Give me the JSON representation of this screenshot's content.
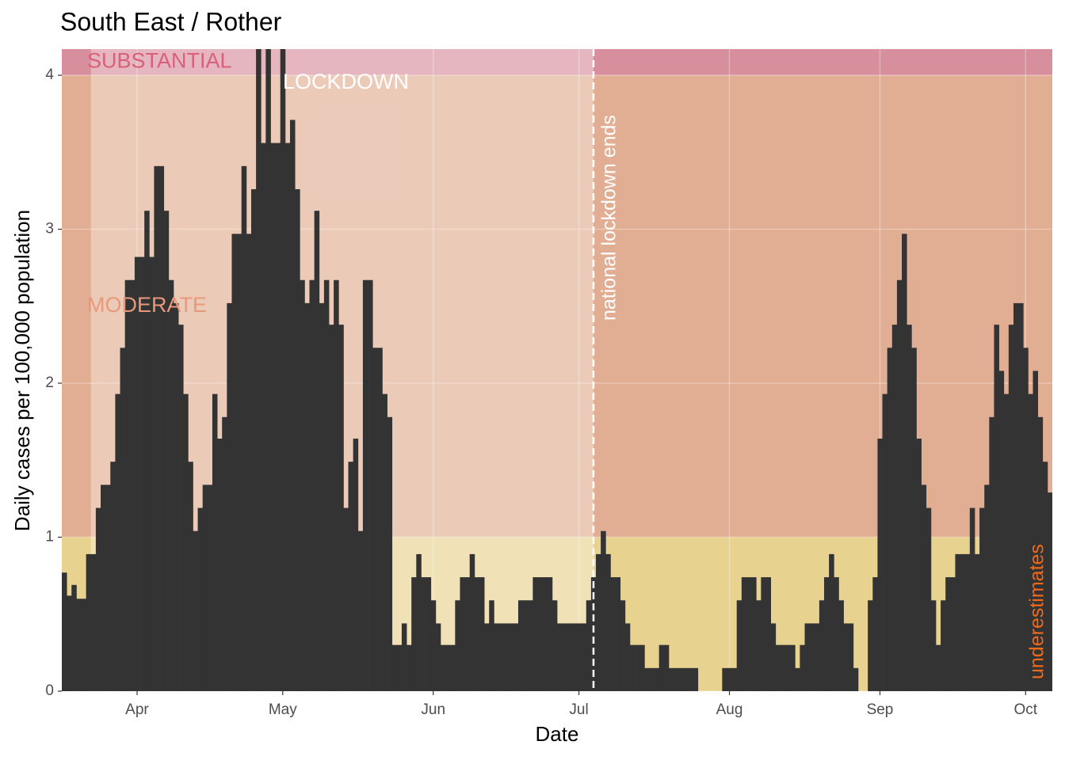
{
  "chart_data": {
    "type": "bar",
    "title": "South East / Rother",
    "x_label": "Date",
    "y_label": "Daily cases per 100,000 population",
    "categories": [
      null,
      null,
      null,
      null,
      null,
      null,
      null,
      null,
      null,
      null,
      null,
      null,
      null,
      null,
      null,
      "Apr",
      null,
      null,
      null,
      null,
      null,
      null,
      null,
      null,
      null,
      null,
      null,
      null,
      null,
      null,
      null,
      null,
      null,
      null,
      null,
      null,
      null,
      null,
      null,
      null,
      null,
      null,
      null,
      null,
      null,
      "May",
      null,
      null,
      null,
      null,
      null,
      null,
      null,
      null,
      null,
      null,
      null,
      null,
      null,
      null,
      null,
      null,
      null,
      null,
      null,
      null,
      null,
      null,
      null,
      null,
      null,
      null,
      null,
      null,
      null,
      null,
      "Jun",
      null,
      null,
      null,
      null,
      null,
      null,
      null,
      null,
      null,
      null,
      null,
      null,
      null,
      null,
      null,
      null,
      null,
      null,
      null,
      null,
      null,
      null,
      null,
      null,
      null,
      null,
      null,
      null,
      null,
      "Jul",
      null,
      null,
      null,
      null,
      null,
      null,
      null,
      null,
      null,
      null,
      null,
      null,
      null,
      null,
      null,
      null,
      null,
      null,
      null,
      null,
      null,
      null,
      null,
      null,
      null,
      null,
      null,
      null,
      null,
      null,
      "Aug",
      null,
      null,
      null,
      null,
      null,
      null,
      null,
      null,
      null,
      null,
      null,
      null,
      null,
      null,
      null,
      null,
      null,
      null,
      null,
      null,
      null,
      null,
      null,
      null,
      null,
      null,
      null,
      null,
      null,
      null,
      "Sep",
      null,
      null,
      null,
      null,
      null,
      null,
      null,
      null,
      null,
      null,
      null,
      null,
      null,
      null,
      null,
      null,
      null,
      null,
      null,
      null,
      null,
      null,
      null,
      null,
      null,
      null,
      null,
      null,
      null,
      "Oct",
      null,
      null,
      null,
      null,
      null
    ],
    "values": [
      0.77,
      0.62,
      0.69,
      0.6,
      0.6,
      0.89,
      0.89,
      1.19,
      1.34,
      1.34,
      1.49,
      1.93,
      2.23,
      2.67,
      2.67,
      2.82,
      2.82,
      3.12,
      2.82,
      3.41,
      3.41,
      3.12,
      2.67,
      2.52,
      2.38,
      1.93,
      1.49,
      1.04,
      1.19,
      1.34,
      1.34,
      1.93,
      1.64,
      1.78,
      2.52,
      2.97,
      2.97,
      3.41,
      2.97,
      3.26,
      4.31,
      3.56,
      4.31,
      3.56,
      3.56,
      4.31,
      3.56,
      3.71,
      3.26,
      2.67,
      2.52,
      2.67,
      3.12,
      2.52,
      2.67,
      2.38,
      2.67,
      2.38,
      1.19,
      1.49,
      1.64,
      1.04,
      2.67,
      2.67,
      2.23,
      2.23,
      1.93,
      1.78,
      0.3,
      0.3,
      0.44,
      0.3,
      0.74,
      0.89,
      0.74,
      0.74,
      0.59,
      0.44,
      0.3,
      0.3,
      0.3,
      0.59,
      0.74,
      0.74,
      0.89,
      0.74,
      0.74,
      0.44,
      0.59,
      0.44,
      0.44,
      0.44,
      0.44,
      0.44,
      0.59,
      0.59,
      0.59,
      0.74,
      0.74,
      0.74,
      0.74,
      0.59,
      0.44,
      0.44,
      0.44,
      0.44,
      0.44,
      0.44,
      0.59,
      0.74,
      0.89,
      1.04,
      0.89,
      0.74,
      0.74,
      0.59,
      0.44,
      0.3,
      0.3,
      0.3,
      0.15,
      0.15,
      0.15,
      0.3,
      0.3,
      0.15,
      0.15,
      0.15,
      0.15,
      0.15,
      0.15,
      0,
      0,
      0,
      0,
      0,
      0.15,
      0.15,
      0.15,
      0.59,
      0.74,
      0.74,
      0.74,
      0.59,
      0.74,
      0.74,
      0.44,
      0.3,
      0.3,
      0.3,
      0.3,
      0.15,
      0.3,
      0.44,
      0.44,
      0.44,
      0.59,
      0.74,
      0.89,
      0.74,
      0.59,
      0.44,
      0.44,
      0.15,
      0,
      0,
      0.59,
      0.74,
      1.64,
      1.93,
      2.23,
      2.38,
      2.67,
      2.97,
      2.38,
      2.23,
      1.64,
      1.34,
      1.19,
      0.59,
      0.3,
      0.59,
      0.74,
      0.74,
      0.89,
      0.89,
      0.89,
      1.19,
      0.89,
      1.19,
      1.34,
      1.78,
      2.38,
      2.08,
      1.93,
      2.38,
      2.52,
      2.52,
      2.23,
      1.93,
      2.08,
      1.78,
      1.49,
      1.29
    ],
    "color": "#333333",
    "ylim": [
      0,
      4.17
    ],
    "yticks": [
      0,
      1,
      2,
      3,
      4
    ],
    "grid": true,
    "bands": [
      {
        "from": 0,
        "to": 1,
        "color": "#e8d28f"
      },
      {
        "label": "MODERATE",
        "from": 1,
        "to": 4,
        "color": "#e2ae93",
        "label_color": "#e8997a"
      },
      {
        "label": "SUBSTANTIAL",
        "from": 4,
        "color": "#d78f9d",
        "label_color": "#d9607a"
      }
    ],
    "lockdown": {
      "label": "LOCKDOWN",
      "start": 6,
      "end": 109,
      "end_label": "national lockdown ends"
    },
    "annotation": "underestimates",
    "annotation_color": "#f06a1a"
  }
}
